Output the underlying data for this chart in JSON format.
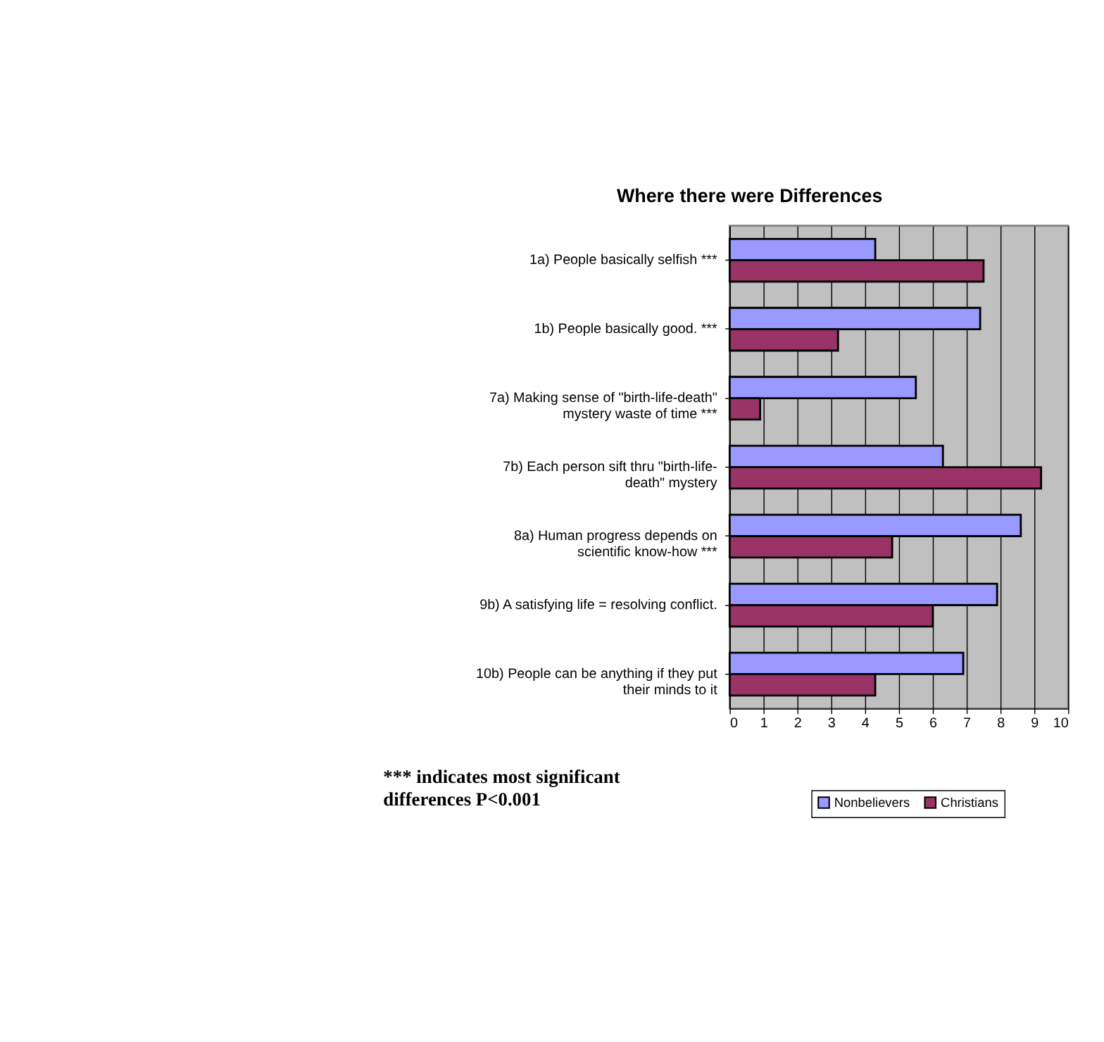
{
  "chart_data": {
    "type": "bar",
    "orientation": "horizontal",
    "title": "Where there were Differences",
    "categories": [
      "1a) People basically selfish ***",
      "1b) People basically good. ***",
      "7a) Making sense of  \"birth-life-death\"\nmystery waste of time ***",
      "7b) Each person sift thru \"birth-life-\ndeath\" mystery",
      "8a) Human progress depends on\nscientific know-how  ***",
      "9b) A satisfying life = resolving conflict.",
      "10b) People can be anything if they put\ntheir minds to it"
    ],
    "series": [
      {
        "name": "Nonbelievers",
        "color": "#9999ff",
        "values": [
          4.3,
          7.4,
          5.5,
          6.3,
          8.6,
          7.9,
          6.9
        ]
      },
      {
        "name": "Christians",
        "color": "#993366",
        "values": [
          7.5,
          3.2,
          0.9,
          9.2,
          4.8,
          6.0,
          4.3
        ]
      }
    ],
    "xlim": [
      0,
      10
    ],
    "xticks": [
      0,
      1,
      2,
      3,
      4,
      5,
      6,
      7,
      8,
      9,
      10
    ],
    "grid": "x",
    "legend": "bottom right",
    "annotations": [
      "*** indicates most significant\ndifferences P<0.001"
    ]
  }
}
